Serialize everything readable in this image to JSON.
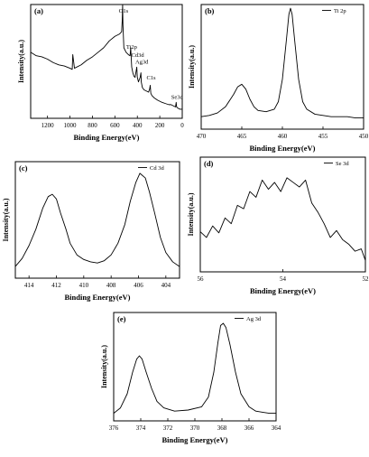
{
  "chart_data": [
    {
      "id": "a",
      "type": "line",
      "panel_label": "(a)",
      "xlabel": "Binding Energy(eV)",
      "ylabel": "Intensity(a.u.)",
      "xlim": [
        1350,
        0
      ],
      "ylim": [
        0,
        1
      ],
      "xticks": [
        1200,
        1000,
        800,
        600,
        400,
        200,
        0
      ],
      "xtick_labels": [
        "1200",
        "1000",
        "800",
        "600",
        "400",
        "200",
        "0"
      ],
      "annotations": [
        {
          "text": "O1s",
          "x": 531,
          "y": 0.93
        },
        {
          "text": "Ti2p",
          "x": 459,
          "y": 0.61
        },
        {
          "text": "Cd3d",
          "x": 405,
          "y": 0.54
        },
        {
          "text": "Ag3d",
          "x": 368,
          "y": 0.48
        },
        {
          "text": "C1s",
          "x": 285,
          "y": 0.34
        },
        {
          "text": "Se3d",
          "x": 54,
          "y": 0.17
        }
      ],
      "series": [
        {
          "x": [
            1350,
            1300,
            1250,
            1200,
            1150,
            1100,
            1050,
            1000,
            980,
            975,
            960,
            900,
            850,
            800,
            750,
            700,
            650,
            600,
            560,
            540,
            535,
            531,
            528,
            520,
            500,
            480,
            465,
            459,
            455,
            450,
            440,
            430,
            420,
            410,
            405,
            400,
            390,
            375,
            368,
            365,
            355,
            340,
            320,
            300,
            290,
            285,
            280,
            270,
            250,
            220,
            200,
            180,
            150,
            120,
            100,
            80,
            60,
            54,
            50,
            40,
            20,
            0
          ],
          "y": [
            0.58,
            0.55,
            0.54,
            0.52,
            0.49,
            0.47,
            0.46,
            0.44,
            0.43,
            0.56,
            0.44,
            0.47,
            0.51,
            0.54,
            0.58,
            0.62,
            0.68,
            0.72,
            0.74,
            0.76,
            0.85,
            1.0,
            0.82,
            0.62,
            0.58,
            0.56,
            0.55,
            0.62,
            0.54,
            0.45,
            0.4,
            0.37,
            0.36,
            0.42,
            0.45,
            0.36,
            0.32,
            0.36,
            0.4,
            0.32,
            0.27,
            0.25,
            0.24,
            0.23,
            0.26,
            0.29,
            0.22,
            0.2,
            0.18,
            0.16,
            0.15,
            0.14,
            0.13,
            0.12,
            0.12,
            0.11,
            0.1,
            0.14,
            0.1,
            0.09,
            0.08,
            0.08
          ]
        }
      ]
    },
    {
      "id": "b",
      "type": "line",
      "panel_label": "(b)",
      "xlabel": "Binding Energy(eV)",
      "ylabel": "Intensity(a.u.)",
      "xlim": [
        470,
        450
      ],
      "ylim": [
        0,
        1
      ],
      "xticks": [
        470,
        465,
        460,
        455,
        450
      ],
      "xtick_labels": [
        "470",
        "465",
        "460",
        "455",
        "450"
      ],
      "legend": {
        "entries": [
          "Ti 2p"
        ],
        "position": "top-right"
      },
      "series": [
        {
          "name": "Ti 2p",
          "x": [
            470,
            469,
            468,
            467,
            466,
            465.5,
            465,
            464.5,
            464,
            463.5,
            463,
            462,
            461,
            460.5,
            460,
            459.5,
            459.2,
            459,
            458.8,
            458.5,
            458,
            457.5,
            457,
            456,
            455,
            454,
            453,
            452,
            451,
            450
          ],
          "y": [
            0.1,
            0.11,
            0.13,
            0.18,
            0.28,
            0.34,
            0.36,
            0.32,
            0.24,
            0.18,
            0.15,
            0.14,
            0.16,
            0.22,
            0.4,
            0.72,
            0.92,
            0.97,
            0.92,
            0.72,
            0.4,
            0.22,
            0.16,
            0.12,
            0.11,
            0.1,
            0.1,
            0.1,
            0.09,
            0.09
          ]
        }
      ]
    },
    {
      "id": "c",
      "type": "line",
      "panel_label": "(c)",
      "xlabel": "Binding Energy(eV)",
      "ylabel": "Intensity(a.u.)",
      "xlim": [
        415,
        403
      ],
      "ylim": [
        0,
        1
      ],
      "xticks": [
        414,
        412,
        410,
        408,
        406,
        404
      ],
      "xtick_labels": [
        "414",
        "412",
        "410",
        "408",
        "406",
        "404"
      ],
      "legend": {
        "entries": [
          "Cd 3d"
        ],
        "position": "top-right"
      },
      "series": [
        {
          "name": "Cd 3d",
          "x": [
            415,
            414.5,
            414,
            413.5,
            413,
            412.6,
            412.3,
            412,
            411.7,
            411.3,
            411,
            410.5,
            410,
            409.5,
            409,
            408.5,
            408,
            407.5,
            407,
            406.6,
            406.2,
            405.9,
            405.5,
            405.2,
            404.8,
            404.4,
            404,
            403.5,
            403
          ],
          "y": [
            0.1,
            0.17,
            0.28,
            0.42,
            0.6,
            0.7,
            0.72,
            0.68,
            0.56,
            0.42,
            0.3,
            0.2,
            0.16,
            0.14,
            0.13,
            0.15,
            0.2,
            0.3,
            0.46,
            0.66,
            0.82,
            0.9,
            0.86,
            0.74,
            0.55,
            0.35,
            0.22,
            0.14,
            0.1
          ]
        }
      ]
    },
    {
      "id": "d",
      "type": "line",
      "panel_label": "(d)",
      "xlabel": "Binding Energy(eV)",
      "ylabel": "Intensity(a.u.)",
      "xlim": [
        56,
        52
      ],
      "ylim": [
        0,
        1
      ],
      "xticks": [
        56,
        54,
        52
      ],
      "xtick_labels": [
        "56",
        "54",
        "52"
      ],
      "legend": {
        "entries": [
          "Se 3d"
        ],
        "position": "top-right"
      },
      "series": [
        {
          "name": "Se 3d",
          "x": [
            56,
            55.85,
            55.7,
            55.55,
            55.4,
            55.25,
            55.1,
            54.95,
            54.8,
            54.65,
            54.5,
            54.35,
            54.2,
            54.05,
            53.9,
            53.75,
            53.6,
            53.45,
            53.3,
            53.15,
            53.0,
            52.85,
            52.7,
            52.55,
            52.4,
            52.25,
            52.1,
            52
          ],
          "y": [
            0.35,
            0.3,
            0.4,
            0.34,
            0.47,
            0.42,
            0.58,
            0.55,
            0.7,
            0.65,
            0.8,
            0.72,
            0.78,
            0.7,
            0.82,
            0.78,
            0.74,
            0.8,
            0.6,
            0.52,
            0.42,
            0.3,
            0.36,
            0.28,
            0.24,
            0.18,
            0.2,
            0.1
          ]
        }
      ]
    },
    {
      "id": "e",
      "type": "line",
      "panel_label": "(e)",
      "xlabel": "Binding Energy(eV)",
      "ylabel": "Intensity(a.u.)",
      "xlim": [
        376,
        364
      ],
      "ylim": [
        0,
        1
      ],
      "xticks": [
        376,
        374,
        372,
        370,
        368,
        366,
        364
      ],
      "xtick_labels": [
        "376",
        "374",
        "372",
        "370",
        "368",
        "366",
        "364"
      ],
      "legend": {
        "entries": [
          "Ag 3d"
        ],
        "position": "top-right"
      },
      "series": [
        {
          "name": "Ag 3d",
          "x": [
            376,
            375.5,
            375,
            374.6,
            374.3,
            374.1,
            373.9,
            373.6,
            373.2,
            372.8,
            372.3,
            371.5,
            370.5,
            369.5,
            369,
            368.6,
            368.3,
            368.1,
            367.9,
            367.7,
            367.4,
            367,
            366.6,
            366,
            365.5,
            365,
            364.5,
            364
          ],
          "y": [
            0.07,
            0.12,
            0.25,
            0.45,
            0.57,
            0.6,
            0.57,
            0.45,
            0.3,
            0.18,
            0.12,
            0.09,
            0.1,
            0.13,
            0.22,
            0.45,
            0.72,
            0.88,
            0.9,
            0.86,
            0.7,
            0.45,
            0.25,
            0.13,
            0.09,
            0.08,
            0.07,
            0.07
          ]
        }
      ]
    }
  ]
}
